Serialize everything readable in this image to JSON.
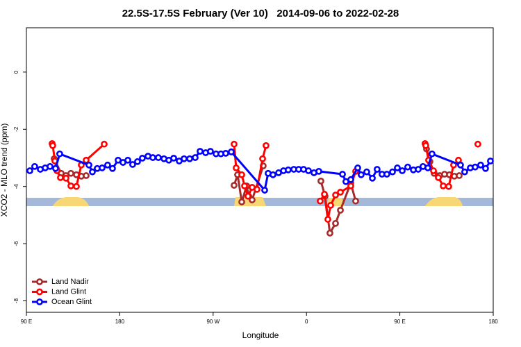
{
  "chart_data": {
    "type": "line",
    "title": "22.5S-17.5S February (Ver 10)   2014-09-06 to 2022-02-28",
    "x_label": "Longitude",
    "y_label": "XCO2 - MLO trend (ppm)",
    "xlim": [
      90,
      540
    ],
    "xticks": [
      {
        "value": 90,
        "label": "90 E"
      },
      {
        "value": 180,
        "label": "180"
      },
      {
        "value": 270,
        "label": "90 W"
      },
      {
        "value": 360,
        "label": "0"
      },
      {
        "value": 450,
        "label": "90 E"
      },
      {
        "value": 540,
        "label": "180"
      }
    ],
    "ylim": [
      -8.4,
      1.55
    ],
    "yticks": [
      0,
      -2,
      -4,
      -6,
      -8
    ],
    "grid": false,
    "legend": "bottom-left",
    "series": [
      {
        "name": "Land Nadir",
        "color": "#a52a2a",
        "x": [
          116.8,
          123.5,
          128.2,
          132.9,
          138.2,
          142.9,
          147.6,
          null,
          290.2,
          293.6,
          297.6,
          302.3,
          304.3,
          307.6,
          318.3,
          null,
          373.9,
          377.9,
          382.6,
          388.0,
          392.7,
          402.7,
          407.4,
          null,
          475.7,
          479.0,
          483.1,
          488.4,
          493.1,
          497.8,
          502.5,
          507.2
        ],
        "values": [
          -3.03,
          -3.54,
          -3.62,
          -3.54,
          -3.59,
          -3.64,
          -3.62,
          null,
          -3.96,
          -3.59,
          -4.54,
          -3.98,
          -4.34,
          -4.47,
          -3.28,
          null,
          -3.81,
          -4.34,
          -5.63,
          -5.29,
          -4.83,
          -3.88,
          -4.51,
          null,
          -2.69,
          -3.13,
          -3.54,
          -3.62,
          -3.57,
          -3.59,
          -3.64,
          -3.62
        ]
      },
      {
        "name": "Land Glint",
        "color": "#ff0000",
        "x": [
          114.8,
          115.4,
          117.5,
          119.5,
          122.8,
          128.2,
          132.9,
          138.2,
          142.9,
          147.6,
          165.0,
          null,
          290.2,
          292.2,
          297.6,
          300.3,
          303.6,
          307.6,
          312.3,
          317.7,
          321.0,
          null,
          373.2,
          377.3,
          380.6,
          383.3,
          388.0,
          392.7,
          402.7,
          407.4,
          null,
          474.3,
          475.0,
          477.7,
          482.4,
          487.1,
          491.8,
          497.1,
          501.8,
          506.5,
          null,
          525.2
        ],
        "values": [
          -2.5,
          -2.57,
          -3.11,
          -3.45,
          -3.69,
          -3.71,
          -3.98,
          -4.0,
          -3.25,
          -3.08,
          -2.52,
          null,
          -2.52,
          -3.35,
          -3.59,
          -3.98,
          -4.34,
          -4.03,
          -4.1,
          -3.03,
          -2.57,
          null,
          -4.51,
          -4.27,
          -5.15,
          -4.66,
          -4.3,
          -4.2,
          -3.98,
          -3.47,
          null,
          -2.5,
          -2.57,
          -3.08,
          -3.45,
          -3.69,
          -3.98,
          -4.0,
          -3.25,
          -3.08,
          null,
          -2.52
        ]
      },
      {
        "name": "Ocean Glint",
        "color": "#0000ff",
        "x": [
          93.3,
          98.0,
          103.4,
          108.1,
          112.8,
          118.1,
          122.1,
          150.3,
          153.6,
          158.3,
          163.0,
          168.3,
          173.0,
          178.4,
          183.1,
          187.8,
          192.4,
          197.1,
          201.8,
          207.2,
          211.9,
          217.2,
          222.6,
          227.3,
          232.0,
          237.3,
          242.0,
          247.4,
          252.7,
          257.4,
          262.8,
          267.4,
          272.8,
          277.5,
          282.2,
          287.5,
          319.7,
          323.0,
          327.7,
          333.1,
          337.8,
          342.4,
          347.8,
          352.5,
          357.2,
          361.9,
          367.2,
          371.9,
          394.7,
          398.0,
          402.7,
          409.4,
          412.7,
          418.1,
          423.5,
          428.1,
          432.8,
          437.5,
          442.9,
          447.6,
          452.3,
          457.6,
          463.0,
          467.7,
          472.3,
          477.0,
          481.0,
          508.5,
          512.5,
          517.9,
          522.6,
          527.9,
          532.6,
          537.3
        ],
        "values": [
          -3.45,
          -3.3,
          -3.4,
          -3.35,
          -3.3,
          -3.37,
          -2.86,
          -3.25,
          -3.49,
          -3.37,
          -3.35,
          -3.25,
          -3.37,
          -3.08,
          -3.16,
          -3.08,
          -3.23,
          -3.13,
          -3.01,
          -2.94,
          -2.99,
          -2.99,
          -3.03,
          -3.08,
          -3.01,
          -3.11,
          -3.03,
          -3.03,
          -2.99,
          -2.77,
          -2.82,
          -2.77,
          -2.86,
          -2.86,
          -2.84,
          -2.79,
          -4.13,
          -3.54,
          -3.59,
          -3.52,
          -3.45,
          -3.42,
          -3.4,
          -3.4,
          -3.4,
          -3.45,
          -3.52,
          -3.47,
          -3.57,
          -3.83,
          -3.76,
          -3.35,
          -3.59,
          -3.49,
          -3.71,
          -3.4,
          -3.57,
          -3.57,
          -3.49,
          -3.35,
          -3.45,
          -3.32,
          -3.42,
          -3.4,
          -3.3,
          -3.35,
          -2.86,
          -3.25,
          -3.49,
          -3.35,
          -3.32,
          -3.25,
          -3.37,
          -3.11
        ]
      }
    ]
  }
}
